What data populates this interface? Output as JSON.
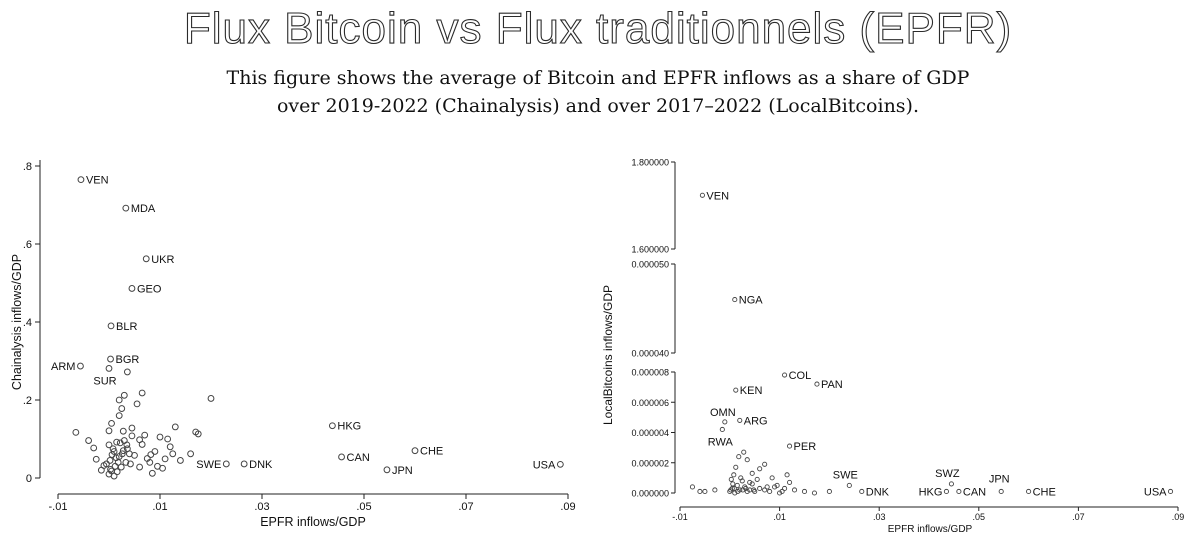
{
  "header": {
    "title": "Flux Bitcoin vs Flux traditionnels (EPFR)",
    "subtitle_line1": "This figure shows the average of Bitcoin and EPFR inflows as a share of GDP",
    "subtitle_line2": "over 2019-2022 (Chainalysis) and over 2017–2022 (LocalBitcoins)."
  },
  "chart_data": [
    {
      "type": "scatter",
      "xlabel": "EPFR inflows/GDP",
      "ylabel": "Chainalysis inflows/GDP",
      "xlim": [
        -0.01,
        0.09
      ],
      "ylim": [
        0,
        0.8
      ],
      "xticks": [
        -0.01,
        0.01,
        0.03,
        0.05,
        0.07,
        0.09
      ],
      "xtick_labels": [
        "-.01",
        ".01",
        ".03",
        ".05",
        ".07",
        ".09"
      ],
      "yticks": [
        0,
        0.2,
        0.4,
        0.6,
        0.8
      ],
      "ytick_labels": [
        "0",
        ".2",
        ".4",
        ".6",
        ".8"
      ],
      "grid": false,
      "marker": "hollow-circle",
      "labeled_points": [
        {
          "label": "VEN",
          "x": -0.0055,
          "y": 0.765
        },
        {
          "label": "MDA",
          "x": 0.0033,
          "y": 0.692
        },
        {
          "label": "UKR",
          "x": 0.0073,
          "y": 0.562
        },
        {
          "label": "GEO",
          "x": 0.0045,
          "y": 0.486
        },
        {
          "label": "BLR",
          "x": 0.0004,
          "y": 0.39
        },
        {
          "label": "BGR",
          "x": 0.0003,
          "y": 0.305
        },
        {
          "label": "ARM",
          "x": -0.0056,
          "y": 0.287
        },
        {
          "label": "SUR",
          "x": 0.0,
          "y": 0.281
        },
        {
          "label": "HKG",
          "x": 0.0438,
          "y": 0.134
        },
        {
          "label": "CHE",
          "x": 0.06,
          "y": 0.07
        },
        {
          "label": "CAN",
          "x": 0.0456,
          "y": 0.054
        },
        {
          "label": "SWE",
          "x": 0.023,
          "y": 0.036
        },
        {
          "label": "DNK",
          "x": 0.0265,
          "y": 0.036
        },
        {
          "label": "JPN",
          "x": 0.0545,
          "y": 0.021
        },
        {
          "label": "USA",
          "x": 0.0885,
          "y": 0.035
        }
      ],
      "points": [
        [
          0.003,
          0.212
        ],
        [
          0.002,
          0.2
        ],
        [
          0.0065,
          0.218
        ],
        [
          0.02,
          0.204
        ],
        [
          0.013,
          0.131
        ],
        [
          0.017,
          0.118
        ],
        [
          0.0175,
          0.113
        ],
        [
          -0.0065,
          0.117
        ],
        [
          -0.004,
          0.096
        ],
        [
          -0.003,
          0.077
        ],
        [
          -0.0025,
          0.048
        ],
        [
          -0.001,
          0.032
        ],
        [
          0.0,
          0.085
        ],
        [
          0.0,
          0.121
        ],
        [
          0.0005,
          0.14
        ],
        [
          0.001,
          0.068
        ],
        [
          0.0015,
          0.092
        ],
        [
          0.002,
          0.16
        ],
        [
          0.0025,
          0.178
        ],
        [
          0.003,
          0.096
        ],
        [
          0.0035,
          0.085
        ],
        [
          0.004,
          0.062
        ],
        [
          0.0045,
          0.108
        ],
        [
          0.005,
          0.058
        ],
        [
          0.0055,
          0.19
        ],
        [
          0.006,
          0.098
        ],
        [
          0.0065,
          0.086
        ],
        [
          0.007,
          0.11
        ],
        [
          0.0075,
          0.05
        ],
        [
          0.008,
          0.04
        ],
        [
          0.009,
          0.068
        ],
        [
          0.01,
          0.105
        ],
        [
          0.011,
          0.049
        ],
        [
          0.0115,
          0.1
        ],
        [
          0.012,
          0.08
        ],
        [
          0.014,
          0.045
        ],
        [
          0.016,
          0.062
        ],
        [
          0.0085,
          0.012
        ],
        [
          0.0095,
          0.03
        ],
        [
          0.0105,
          0.025
        ],
        [
          0.0,
          0.01
        ],
        [
          0.0005,
          0.018
        ],
        [
          0.001,
          0.005
        ],
        [
          -0.0015,
          0.02
        ],
        [
          0.002,
          0.055
        ],
        [
          0.0028,
          0.07
        ],
        [
          0.0033,
          0.04
        ],
        [
          0.0012,
          0.03
        ],
        [
          0.0018,
          0.04
        ],
        [
          0.0006,
          0.06
        ],
        [
          0.0002,
          0.045
        ],
        [
          0.0008,
          0.075
        ],
        [
          0.0014,
          0.052
        ],
        [
          0.0022,
          0.09
        ],
        [
          0.0026,
          0.062
        ],
        [
          0.0036,
          0.075
        ],
        [
          0.0042,
          0.036
        ],
        [
          0.006,
          0.028
        ],
        [
          0.0125,
          0.062
        ],
        [
          0.0082,
          0.06
        ],
        [
          0.0028,
          0.12
        ],
        [
          0.0036,
          0.272
        ],
        [
          0.0045,
          0.128
        ],
        [
          -0.0005,
          0.036
        ],
        [
          0.0003,
          0.022
        ],
        [
          0.0016,
          0.016
        ],
        [
          0.0024,
          0.028
        ]
      ]
    },
    {
      "type": "scatter",
      "xlabel": "EPFR inflows/GDP",
      "ylabel": "LocalBitcoins inflows/GDP",
      "xlim": [
        -0.01,
        0.09
      ],
      "xticks": [
        -0.01,
        0.01,
        0.03,
        0.05,
        0.07,
        0.09
      ],
      "xtick_labels": [
        "-.01",
        ".01",
        ".03",
        ".05",
        ".07",
        ".09"
      ],
      "broken_y_axis": true,
      "y_segments": [
        {
          "range": [
            0,
            8e-06
          ],
          "ticks": [
            0,
            2e-06,
            4e-06,
            6e-06,
            8e-06
          ],
          "tick_labels": [
            "0.000000",
            "0.000002",
            "0.000004",
            "0.000006",
            "0.000008"
          ]
        },
        {
          "range": [
            4e-05,
            5e-05
          ],
          "ticks": [
            4e-05,
            5e-05
          ],
          "tick_labels": [
            "0.000040",
            "0.000050"
          ]
        },
        {
          "range": [
            1.6,
            1.8
          ],
          "ticks": [
            1.6,
            1.8
          ],
          "tick_labels": [
            "1.600000",
            "1.800000"
          ]
        }
      ],
      "grid": false,
      "marker": "hollow-small-circle",
      "labeled_points": [
        {
          "label": "VEN",
          "x": -0.0055,
          "y": 1.7235
        },
        {
          "label": "NGA",
          "x": 0.001,
          "y": 4.6e-05
        },
        {
          "label": "COL",
          "x": 0.011,
          "y": 7.8e-06
        },
        {
          "label": "PAN",
          "x": 0.0175,
          "y": 7.2e-06
        },
        {
          "label": "KEN",
          "x": 0.0012,
          "y": 6.8e-06
        },
        {
          "label": "OMN",
          "x": -0.001,
          "y": 4.7e-06
        },
        {
          "label": "ARG",
          "x": 0.002,
          "y": 4.8e-06
        },
        {
          "label": "RWA",
          "x": -0.0015,
          "y": 4.2e-06
        },
        {
          "label": "PER",
          "x": 0.012,
          "y": 3.1e-06
        },
        {
          "label": "SWE",
          "x": 0.024,
          "y": 5e-07
        },
        {
          "label": "SWZ",
          "x": 0.0445,
          "y": 6e-07
        },
        {
          "label": "JPN",
          "x": 0.0545,
          "y": 1e-07
        },
        {
          "label": "HKG",
          "x": 0.0435,
          "y": 1e-07
        },
        {
          "label": "CAN",
          "x": 0.046,
          "y": 1e-07
        },
        {
          "label": "DNK",
          "x": 0.0265,
          "y": 1e-07
        },
        {
          "label": "CHE",
          "x": 0.06,
          "y": 1e-07
        },
        {
          "label": "USA",
          "x": 0.0885,
          "y": 1e-07
        }
      ],
      "points": [
        [
          -0.0075,
          4e-07
        ],
        [
          -0.006,
          1e-07
        ],
        [
          -0.005,
          1e-07
        ],
        [
          -0.003,
          2e-07
        ],
        [
          0.0,
          1e-07
        ],
        [
          0.0005,
          3e-07
        ],
        [
          0.001,
          0.0
        ],
        [
          0.0015,
          5e-07
        ],
        [
          0.002,
          2e-07
        ],
        [
          0.0025,
          8e-07
        ],
        [
          0.003,
          4e-07
        ],
        [
          0.0035,
          1e-07
        ],
        [
          0.004,
          2e-07
        ],
        [
          0.0045,
          6e-07
        ],
        [
          0.005,
          1e-07
        ],
        [
          0.006,
          3e-07
        ],
        [
          0.007,
          2e-07
        ],
        [
          0.008,
          1e-07
        ],
        [
          0.009,
          4e-07
        ],
        [
          0.01,
          0.0
        ],
        [
          0.011,
          3e-07
        ],
        [
          0.012,
          7e-07
        ],
        [
          0.013,
          2e-07
        ],
        [
          0.015,
          1e-07
        ],
        [
          0.017,
          0.0
        ],
        [
          0.02,
          1e-07
        ],
        [
          0.0008,
          1.2e-06
        ],
        [
          0.0012,
          1.7e-06
        ],
        [
          0.0018,
          2.4e-06
        ],
        [
          0.0028,
          2.7e-06
        ],
        [
          0.0035,
          2.2e-06
        ],
        [
          0.0045,
          1.3e-06
        ],
        [
          0.006,
          1.6e-06
        ],
        [
          0.007,
          1.9e-06
        ],
        [
          0.0085,
          1e-06
        ],
        [
          0.0115,
          1.2e-06
        ],
        [
          0.0003,
          9e-07
        ],
        [
          0.0006,
          6e-07
        ],
        [
          0.0022,
          1e-06
        ],
        [
          0.004,
          7e-07
        ],
        [
          0.0055,
          9e-07
        ],
        [
          0.0095,
          5e-07
        ],
        [
          0.0002,
          2e-07
        ],
        [
          0.0009,
          3e-07
        ],
        [
          0.0016,
          1e-07
        ],
        [
          0.0026,
          2e-07
        ],
        [
          0.0032,
          3e-07
        ],
        [
          0.0048,
          2e-07
        ],
        [
          0.0075,
          4e-07
        ],
        [
          0.0105,
          1e-07
        ]
      ]
    }
  ]
}
